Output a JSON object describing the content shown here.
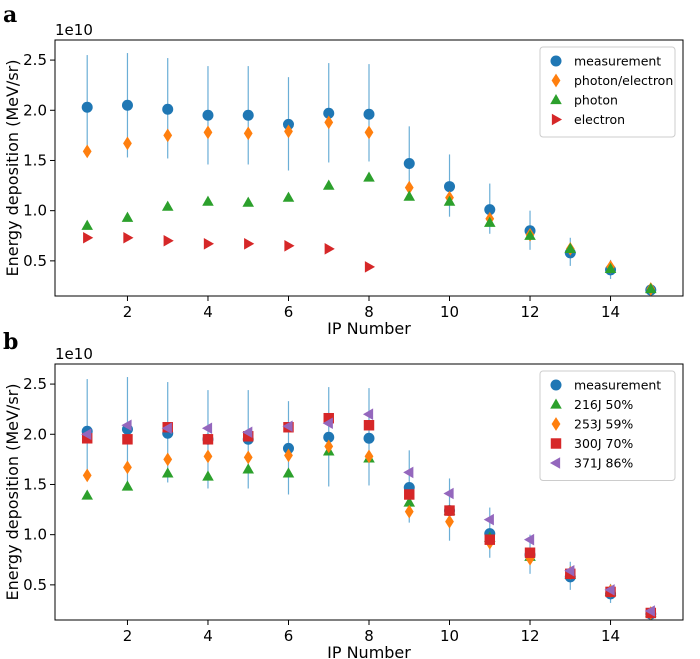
{
  "panels": [
    {
      "letter": "a",
      "exponent_label": "1e10",
      "chart_data": {
        "type": "scatter",
        "xlabel": "IP Number",
        "ylabel": "Energy deposition (MeV/sr)",
        "xlim": [
          0.2,
          15.8
        ],
        "ylim": [
          0.15,
          2.7
        ],
        "xticks": [
          2,
          4,
          6,
          8,
          10,
          12,
          14
        ],
        "xtick_labels": [
          "2",
          "4",
          "6",
          "8",
          "10",
          "12",
          "14"
        ],
        "yticks": [
          0.5,
          1.0,
          1.5,
          2.0,
          2.5
        ],
        "ytick_labels": [
          "0.5",
          "1.0",
          "1.5",
          "2.0",
          "2.5"
        ],
        "legend_position": "top-right",
        "error_color": "#6baed6",
        "series": [
          {
            "name": "measurement",
            "marker": "circle",
            "color": "#1f77b4",
            "x": [
              1,
              2,
              3,
              4,
              5,
              6,
              7,
              8,
              9,
              10,
              11,
              12,
              13,
              14,
              15
            ],
            "y": [
              2.03,
              2.05,
              2.01,
              1.95,
              1.95,
              1.86,
              1.97,
              1.96,
              1.47,
              1.24,
              1.01,
              0.8,
              0.58,
              0.41,
              0.21
            ],
            "err_low": [
              1.55,
              1.53,
              1.52,
              1.46,
              1.46,
              1.4,
              1.48,
              1.49,
              1.12,
              0.94,
              0.77,
              0.61,
              0.45,
              0.32,
              0.19
            ],
            "err_high": [
              2.55,
              2.57,
              2.52,
              2.44,
              2.44,
              2.33,
              2.47,
              2.46,
              1.84,
              1.56,
              1.27,
              1.0,
              0.73,
              0.51,
              0.24
            ]
          },
          {
            "name": "photon/electron",
            "marker": "diamond",
            "color": "#ff7f0e",
            "x": [
              1,
              2,
              3,
              4,
              5,
              6,
              7,
              8,
              9,
              10,
              11,
              12,
              13,
              14,
              15
            ],
            "y": [
              1.59,
              1.67,
              1.75,
              1.78,
              1.77,
              1.79,
              1.88,
              1.78,
              1.23,
              1.13,
              0.92,
              0.76,
              0.62,
              0.44,
              0.22
            ]
          },
          {
            "name": "photon",
            "marker": "triangle-up",
            "color": "#2ca02c",
            "x": [
              1,
              2,
              3,
              4,
              5,
              6,
              7,
              8,
              9,
              10,
              11,
              12,
              13,
              14,
              15
            ],
            "y": [
              0.85,
              0.93,
              1.04,
              1.09,
              1.08,
              1.13,
              1.25,
              1.33,
              1.14,
              1.09,
              0.88,
              0.75,
              0.62,
              0.42,
              0.22
            ]
          },
          {
            "name": "electron",
            "marker": "triangle-right",
            "color": "#d62728",
            "x": [
              1,
              2,
              3,
              4,
              5,
              6,
              7,
              8
            ],
            "y": [
              0.73,
              0.73,
              0.7,
              0.67,
              0.67,
              0.65,
              0.62,
              0.44
            ]
          }
        ]
      }
    },
    {
      "letter": "b",
      "exponent_label": "1e10",
      "chart_data": {
        "type": "scatter",
        "xlabel": "IP Number",
        "ylabel": "Energy deposition (MeV/sr)",
        "xlim": [
          0.2,
          15.8
        ],
        "ylim": [
          0.15,
          2.7
        ],
        "xticks": [
          2,
          4,
          6,
          8,
          10,
          12,
          14
        ],
        "xtick_labels": [
          "2",
          "4",
          "6",
          "8",
          "10",
          "12",
          "14"
        ],
        "yticks": [
          0.5,
          1.0,
          1.5,
          2.0,
          2.5
        ],
        "ytick_labels": [
          "0.5",
          "1.0",
          "1.5",
          "2.0",
          "2.5"
        ],
        "legend_position": "top-right",
        "error_color": "#6baed6",
        "series": [
          {
            "name": "measurement",
            "marker": "circle",
            "color": "#1f77b4",
            "x": [
              1,
              2,
              3,
              4,
              5,
              6,
              7,
              8,
              9,
              10,
              11,
              12,
              13,
              14,
              15
            ],
            "y": [
              2.03,
              2.05,
              2.01,
              1.95,
              1.95,
              1.86,
              1.97,
              1.96,
              1.47,
              1.24,
              1.01,
              0.8,
              0.58,
              0.41,
              0.21
            ],
            "err_low": [
              1.55,
              1.53,
              1.52,
              1.46,
              1.46,
              1.4,
              1.48,
              1.49,
              1.12,
              0.94,
              0.77,
              0.61,
              0.45,
              0.32,
              0.19
            ],
            "err_high": [
              2.55,
              2.57,
              2.52,
              2.44,
              2.44,
              2.33,
              2.47,
              2.46,
              1.84,
              1.56,
              1.27,
              1.0,
              0.73,
              0.51,
              0.24
            ]
          },
          {
            "name": "216J 50%",
            "marker": "triangle-up",
            "color": "#2ca02c",
            "x": [
              1,
              2,
              3,
              4,
              5,
              6,
              7,
              8,
              9,
              10,
              11,
              12,
              13,
              14,
              15
            ],
            "y": [
              1.39,
              1.48,
              1.61,
              1.58,
              1.65,
              1.61,
              1.83,
              1.76,
              1.32,
              1.24,
              0.97,
              0.78,
              0.6,
              0.43,
              0.22
            ]
          },
          {
            "name": "253J 59%",
            "marker": "diamond",
            "color": "#ff7f0e",
            "x": [
              1,
              2,
              3,
              4,
              5,
              6,
              7,
              8,
              9,
              10,
              11,
              12,
              13,
              14,
              15
            ],
            "y": [
              1.59,
              1.67,
              1.75,
              1.78,
              1.77,
              1.79,
              1.88,
              1.78,
              1.23,
              1.13,
              0.92,
              0.76,
              0.62,
              0.44,
              0.22
            ]
          },
          {
            "name": "300J 70%",
            "marker": "square",
            "color": "#d62728",
            "x": [
              1,
              2,
              3,
              4,
              5,
              6,
              7,
              8,
              9,
              10,
              11,
              12,
              13,
              14,
              15
            ],
            "y": [
              1.96,
              1.95,
              2.07,
              1.95,
              1.98,
              2.07,
              2.16,
              2.09,
              1.4,
              1.24,
              0.95,
              0.82,
              0.61,
              0.43,
              0.22
            ]
          },
          {
            "name": "371J 86%",
            "marker": "triangle-left",
            "color": "#9467bd",
            "x": [
              1,
              2,
              3,
              4,
              5,
              6,
              7,
              8,
              9,
              10,
              11,
              12,
              13,
              14,
              15
            ],
            "y": [
              2.0,
              2.09,
              2.06,
              2.06,
              2.02,
              2.08,
              2.11,
              2.2,
              1.62,
              1.41,
              1.15,
              0.95,
              0.64,
              0.45,
              0.24
            ]
          }
        ]
      }
    }
  ]
}
